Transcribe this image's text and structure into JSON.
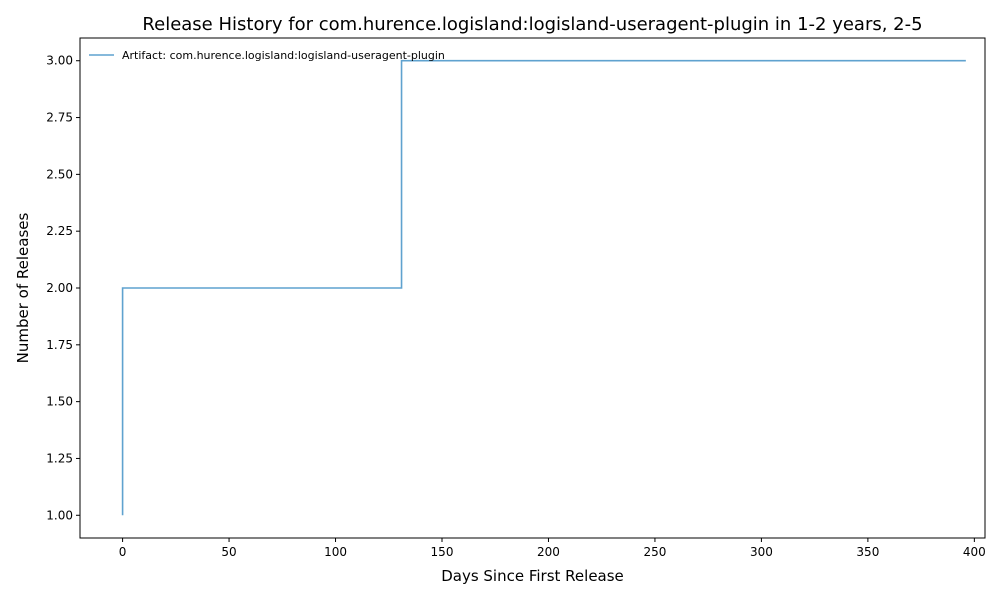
{
  "chart_data": {
    "type": "line",
    "step": "post",
    "title": "Release History for com.hurence.logisland:logisland-useragent-plugin in 1-2 years, 2-5",
    "xlabel": "Days Since First Release",
    "ylabel": "Number of Releases",
    "xlim": [
      -20,
      405
    ],
    "ylim": [
      0.9,
      3.1
    ],
    "xticks": [
      0,
      50,
      100,
      150,
      200,
      250,
      300,
      350,
      400
    ],
    "xtick_labels": [
      "0",
      "50",
      "100",
      "150",
      "200",
      "250",
      "300",
      "350",
      "400"
    ],
    "yticks": [
      1.0,
      1.25,
      1.5,
      1.75,
      2.0,
      2.25,
      2.5,
      2.75,
      3.0
    ],
    "ytick_labels": [
      "1.00",
      "1.25",
      "1.50",
      "1.75",
      "2.00",
      "2.25",
      "2.50",
      "2.75",
      "3.00"
    ],
    "grid": false,
    "legend_position": "top-left",
    "series": [
      {
        "name": "Artifact: com.hurence.logisland:logisland-useragent-plugin",
        "color": "#5fa2cf",
        "x": [
          0,
          0,
          131,
          396
        ],
        "y": [
          1,
          2,
          3,
          3
        ]
      }
    ]
  }
}
